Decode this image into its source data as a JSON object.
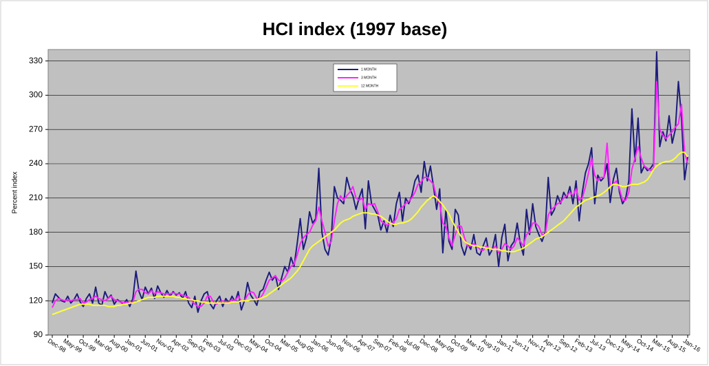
{
  "chart_data": {
    "type": "line",
    "title": "HCI index (1997 base)",
    "y_label": "Percent index",
    "categories": [
      "Dec-98",
      null,
      null,
      null,
      null,
      "May-99",
      null,
      null,
      null,
      null,
      "Oct-99",
      null,
      null,
      null,
      null,
      "Mar-00",
      null,
      null,
      null,
      null,
      "Aug-00",
      null,
      null,
      null,
      null,
      "Jan-01",
      null,
      null,
      null,
      null,
      "Jun-01",
      null,
      null,
      null,
      null,
      "Nov-01",
      null,
      null,
      null,
      null,
      "Apr-02",
      null,
      null,
      null,
      null,
      "Sep-02",
      null,
      null,
      null,
      null,
      "Feb-03",
      null,
      null,
      null,
      null,
      "Jul-03",
      null,
      null,
      null,
      null,
      "Dec-03",
      null,
      null,
      null,
      null,
      "May-04",
      null,
      null,
      null,
      null,
      "Oct-04",
      null,
      null,
      null,
      null,
      "Mar-05",
      null,
      null,
      null,
      null,
      "Aug-05",
      null,
      null,
      null,
      null,
      "Jan-06",
      null,
      null,
      null,
      null,
      "Jun-06",
      null,
      null,
      null,
      null,
      "Nov-06",
      null,
      null,
      null,
      null,
      "Apr-07",
      null,
      null,
      null,
      null,
      "Sep-07",
      null,
      null,
      null,
      null,
      "Feb-08",
      null,
      null,
      null,
      null,
      "Jul-08",
      null,
      null,
      null,
      null,
      "Dec-08",
      null,
      null,
      null,
      null,
      "May-09",
      null,
      null,
      null,
      null,
      "Oct-09",
      null,
      null,
      null,
      null,
      "Mar-10",
      null,
      null,
      null,
      null,
      "Aug-10",
      null,
      null,
      null,
      null,
      "Jan-11",
      null,
      null,
      null,
      null,
      "Jun-11",
      null,
      null,
      null,
      null,
      "Nov-11",
      null,
      null,
      null,
      null,
      "Apr-12",
      null,
      null,
      null,
      null,
      "Sep-12",
      null,
      null,
      null,
      null,
      "Feb-13",
      null,
      null,
      null,
      null,
      "Jul-13",
      null,
      null,
      null,
      null,
      "Dec-13",
      null,
      null,
      null,
      null,
      "May-14",
      null,
      null,
      null,
      null,
      "Oct-14",
      null,
      null,
      null,
      null,
      "Mar-15",
      null,
      null,
      null,
      null,
      "Aug-15",
      null,
      null,
      null,
      null,
      "Jan-16"
    ],
    "series": [
      {
        "name": "1 MONTH",
        "color": "#1c1c7c",
        "values": [
          118,
          126,
          123,
          120,
          119,
          124,
          118,
          121,
          126,
          119,
          115,
          122,
          126,
          118,
          132,
          118,
          116,
          128,
          122,
          125,
          117,
          121,
          119,
          117,
          121,
          115,
          122,
          146,
          128,
          121,
          132,
          126,
          131,
          122,
          133,
          127,
          123,
          129,
          124,
          128,
          125,
          127,
          122,
          128,
          118,
          114,
          124,
          110,
          120,
          126,
          128,
          117,
          113,
          120,
          124,
          115,
          122,
          118,
          124,
          119,
          128,
          112,
          120,
          136,
          125,
          121,
          116,
          128,
          130,
          138,
          145,
          138,
          142,
          130,
          140,
          150,
          145,
          158,
          150,
          170,
          192,
          165,
          175,
          198,
          188,
          192,
          236,
          180,
          165,
          160,
          175,
          220,
          210,
          208,
          205,
          228,
          218,
          212,
          200,
          210,
          218,
          183,
          225,
          205,
          200,
          195,
          182,
          190,
          180,
          195,
          185,
          205,
          215,
          190,
          210,
          205,
          212,
          225,
          230,
          215,
          242,
          225,
          238,
          220,
          200,
          218,
          162,
          200,
          172,
          165,
          200,
          195,
          168,
          160,
          170,
          165,
          178,
          162,
          160,
          168,
          175,
          160,
          165,
          178,
          150,
          175,
          187,
          155,
          168,
          172,
          188,
          170,
          160,
          200,
          178,
          205,
          185,
          178,
          172,
          180,
          228,
          195,
          200,
          212,
          205,
          215,
          210,
          220,
          205,
          225,
          190,
          215,
          232,
          240,
          254,
          205,
          230,
          225,
          228,
          240,
          206,
          226,
          236,
          215,
          205,
          210,
          225,
          288,
          242,
          280,
          232,
          238,
          234,
          236,
          240,
          338,
          255,
          268,
          260,
          282,
          258,
          270,
          312,
          280,
          226,
          246
        ]
      },
      {
        "name": "3 MONTH",
        "color": "#ff22ff",
        "values": [
          114,
          120,
          122,
          121,
          120,
          121,
          120,
          121,
          121,
          122,
          118,
          119,
          121,
          122,
          124,
          122,
          121,
          120,
          122,
          124,
          121,
          120,
          119,
          118,
          119,
          118,
          119,
          128,
          130,
          130,
          127,
          126,
          129,
          126,
          128,
          127,
          126,
          126,
          126,
          127,
          126,
          126,
          125,
          124,
          123,
          120,
          117,
          115,
          115,
          118,
          124,
          124,
          119,
          117,
          119,
          120,
          119,
          119,
          121,
          120,
          124,
          120,
          120,
          125,
          128,
          127,
          122,
          122,
          126,
          132,
          138,
          140,
          142,
          138,
          137,
          140,
          145,
          150,
          152,
          160,
          170,
          175,
          178,
          180,
          186,
          190,
          202,
          190,
          180,
          168,
          172,
          190,
          205,
          212,
          208,
          212,
          215,
          220,
          210,
          208,
          210,
          200,
          205,
          204,
          205,
          198,
          190,
          188,
          186,
          188,
          188,
          192,
          200,
          202,
          205,
          207,
          210,
          215,
          222,
          224,
          228,
          228,
          225,
          222,
          210,
          205,
          188,
          185,
          175,
          168,
          178,
          186,
          185,
          175,
          168,
          168,
          170,
          168,
          165,
          164,
          168,
          166,
          165,
          168,
          162,
          165,
          170,
          168,
          165,
          168,
          175,
          172,
          168,
          178,
          180,
          188,
          188,
          185,
          178,
          178,
          195,
          200,
          202,
          205,
          206,
          210,
          212,
          215,
          212,
          218,
          208,
          210,
          220,
          232,
          245,
          230,
          225,
          228,
          228,
          258,
          220,
          222,
          225,
          218,
          208,
          208,
          215,
          235,
          245,
          255,
          245,
          238,
          236,
          234,
          236,
          312,
          270,
          265,
          262,
          265,
          268,
          272,
          275,
          292,
          250,
          240
        ]
      },
      {
        "name": "12 MONTH",
        "color": "#ffff33",
        "values": [
          108,
          109,
          110,
          111,
          112,
          113,
          114,
          115,
          116,
          117,
          117,
          117,
          117,
          116,
          116,
          116,
          116,
          116,
          115,
          115,
          115,
          116,
          116,
          117,
          117,
          118,
          118,
          119,
          120,
          121,
          122,
          123,
          123,
          123,
          124,
          124,
          124,
          124,
          124,
          124,
          123,
          123,
          122,
          122,
          121,
          121,
          120,
          120,
          119,
          119,
          118,
          118,
          118,
          118,
          118,
          118,
          118,
          118,
          119,
          119,
          119,
          120,
          120,
          120,
          121,
          121,
          121,
          122,
          123,
          124,
          126,
          128,
          130,
          132,
          134,
          136,
          138,
          140,
          143,
          146,
          150,
          155,
          160,
          165,
          168,
          170,
          172,
          174,
          176,
          178,
          180,
          182,
          185,
          188,
          190,
          191,
          192,
          194,
          195,
          196,
          197,
          197,
          197,
          196,
          196,
          195,
          194,
          192,
          190,
          188,
          187,
          187,
          188,
          188,
          189,
          190,
          192,
          195,
          198,
          202,
          205,
          208,
          210,
          212,
          210,
          207,
          204,
          200,
          196,
          190,
          185,
          180,
          176,
          172,
          170,
          169,
          168,
          168,
          167,
          167,
          166,
          166,
          165,
          165,
          165,
          164,
          164,
          163,
          163,
          163,
          164,
          165,
          166,
          168,
          170,
          172,
          174,
          175,
          176,
          178,
          180,
          182,
          184,
          186,
          188,
          190,
          193,
          196,
          199,
          202,
          204,
          206,
          208,
          209,
          210,
          211,
          212,
          213,
          215,
          217,
          220,
          222,
          222,
          221,
          220,
          220,
          221,
          222,
          222,
          222,
          223,
          224,
          226,
          230,
          235,
          238,
          240,
          241,
          242,
          242,
          243,
          245,
          248,
          250,
          250,
          246
        ]
      }
    ],
    "ylim": [
      90,
      340
    ],
    "yticks": [
      90,
      120,
      150,
      180,
      210,
      240,
      270,
      300,
      330
    ],
    "grid": true,
    "legend": "top-center"
  }
}
